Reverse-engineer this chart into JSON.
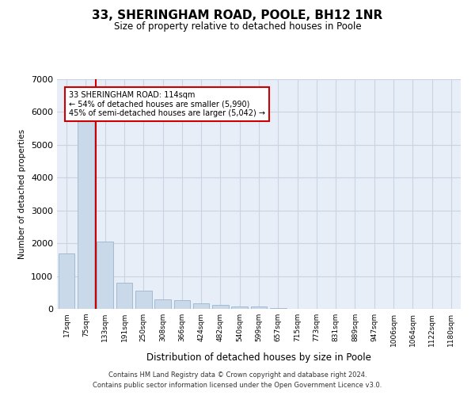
{
  "title": "33, SHERINGHAM ROAD, POOLE, BH12 1NR",
  "subtitle": "Size of property relative to detached houses in Poole",
  "xlabel": "Distribution of detached houses by size in Poole",
  "ylabel": "Number of detached properties",
  "categories": [
    "17sqm",
    "75sqm",
    "133sqm",
    "191sqm",
    "250sqm",
    "308sqm",
    "366sqm",
    "424sqm",
    "482sqm",
    "540sqm",
    "599sqm",
    "657sqm",
    "715sqm",
    "773sqm",
    "831sqm",
    "889sqm",
    "947sqm",
    "1006sqm",
    "1064sqm",
    "1122sqm",
    "1180sqm"
  ],
  "values": [
    1700,
    5750,
    2050,
    800,
    550,
    280,
    260,
    170,
    120,
    80,
    65,
    20,
    0,
    0,
    0,
    0,
    0,
    0,
    0,
    0,
    0
  ],
  "bar_color": "#c9d9ea",
  "bar_edge_color": "#9ab5cc",
  "annotation_line1": "33 SHERINGHAM ROAD: 114sqm",
  "annotation_line2": "← 54% of detached houses are smaller (5,990)",
  "annotation_line3": "45% of semi-detached houses are larger (5,042) →",
  "annotation_box_color": "#ffffff",
  "annotation_border_color": "#cc0000",
  "red_line_color": "#cc0000",
  "ylim": [
    0,
    7000
  ],
  "yticks": [
    0,
    1000,
    2000,
    3000,
    4000,
    5000,
    6000,
    7000
  ],
  "grid_color": "#c8d4e4",
  "background_color": "#e8eef8",
  "footer1": "Contains HM Land Registry data © Crown copyright and database right 2024.",
  "footer2": "Contains public sector information licensed under the Open Government Licence v3.0."
}
